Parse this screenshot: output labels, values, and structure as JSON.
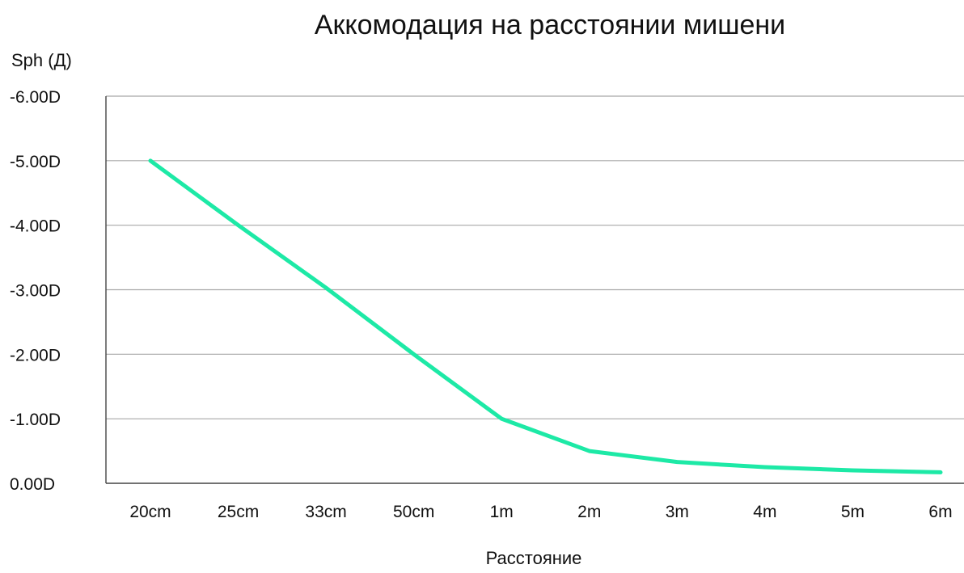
{
  "chart_data": {
    "type": "line",
    "title": "Аккомодация на расстоянии мишени",
    "ylabel": "Sph (Д)",
    "xlabel": "Расстояние",
    "categories": [
      "20cm",
      "25cm",
      "33cm",
      "50cm",
      "1m",
      "2m",
      "3m",
      "4m",
      "5m",
      "6m"
    ],
    "y_ticks": [
      "0.00D",
      "-1.00D",
      "-2.00D",
      "-3.00D",
      "-4.00D",
      "-5.00D",
      "-6.00D"
    ],
    "y_tick_values": [
      0,
      -1,
      -2,
      -3,
      -4,
      -5,
      -6
    ],
    "ylim": [
      0,
      -6
    ],
    "grid": true,
    "series": [
      {
        "values": [
          -5.0,
          -4.0,
          -3.03,
          -2.0,
          -1.0,
          -0.5,
          -0.33,
          -0.25,
          -0.2,
          -0.17
        ],
        "color": "#1de9a6"
      }
    ]
  }
}
